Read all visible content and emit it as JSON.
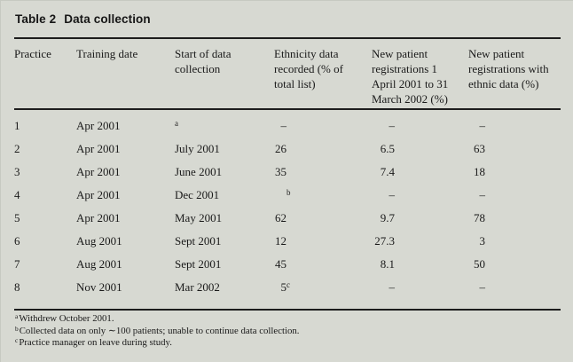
{
  "colors": {
    "background": "#d7d9d2",
    "text": "#1a1a1a",
    "rule": "#1d1d1d"
  },
  "table": {
    "label": "Table 2",
    "title": "Data collection",
    "columns": [
      "Practice",
      "Training date",
      "Start of data collection",
      "Ethnicity data recorded (% of total list)",
      "New patient registrations 1 April 2001 to 31 March 2002 (%)",
      "New patient registrations with ethnic data (%)"
    ],
    "rows": [
      {
        "practice": "1",
        "training_date": "Apr 2001",
        "start": "",
        "start_sup": "a",
        "ethnicity": "–",
        "registrations": "–",
        "with_ethnic": "–"
      },
      {
        "practice": "2",
        "training_date": "Apr 2001",
        "start": "July 2001",
        "ethnicity": "26",
        "registrations": "6.5",
        "with_ethnic": "63"
      },
      {
        "practice": "3",
        "training_date": "Apr 2001",
        "start": "June 2001",
        "ethnicity": "35",
        "registrations": "7.4",
        "with_ethnic": "18"
      },
      {
        "practice": "4",
        "training_date": "Apr 2001",
        "start": "Dec 2001",
        "ethnicity": "",
        "ethnicity_sup": "b",
        "registrations": "–",
        "with_ethnic": "–"
      },
      {
        "practice": "5",
        "training_date": "Apr 2001",
        "start": "May 2001",
        "ethnicity": "62",
        "registrations": "9.7",
        "with_ethnic": "78"
      },
      {
        "practice": "6",
        "training_date": "Aug 2001",
        "start": "Sept 2001",
        "ethnicity": "12",
        "registrations": "27.3",
        "with_ethnic": "3"
      },
      {
        "practice": "7",
        "training_date": "Aug 2001",
        "start": "Sept 2001",
        "ethnicity": "45",
        "registrations": "8.1",
        "with_ethnic": "50"
      },
      {
        "practice": "8",
        "training_date": "Nov 2001",
        "start": "Mar 2002",
        "ethnicity": "5",
        "ethnicity_sup": "c",
        "registrations": "–",
        "with_ethnic": "–"
      }
    ],
    "footnotes": [
      {
        "marker": "a",
        "text": "Withdrew October 2001."
      },
      {
        "marker": "b",
        "text": "Collected data on only ∼100 patients; unable to continue data collection."
      },
      {
        "marker": "c",
        "text": "Practice manager on leave during study."
      }
    ]
  }
}
